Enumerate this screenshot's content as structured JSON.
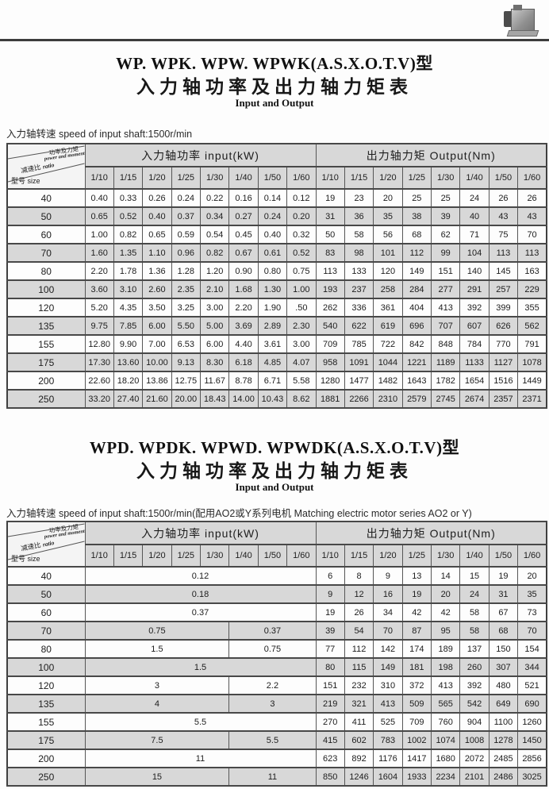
{
  "page": {
    "photo_icon": "gearbox-photo"
  },
  "sections": [
    {
      "title": "WP. WPK. WPW. WPWK(A.S.X.O.T.V)型",
      "subtitle_cn": "入力轴功率及出力轴力矩表",
      "subtitle_en": "Input and Output",
      "note": "入力轴转速 speed of input shaft:1500r/min",
      "table": {
        "corner": {
          "top_cn": "功率及力矩",
          "top_en": "power and moment",
          "mid_cn": "减速比",
          "mid_en": "ratio",
          "bottom_cn": "型号",
          "bottom_en": "size"
        },
        "input_label": "入力轴功率  input(kW)",
        "output_label": "出力轴力矩  Output(Nm)",
        "ratios": [
          "1/10",
          "1/15",
          "1/20",
          "1/25",
          "1/30",
          "1/40",
          "1/50",
          "1/60"
        ],
        "rows": [
          {
            "size": "40",
            "input": [
              "0.40",
              "0.33",
              "0.26",
              "0.24",
              "0.22",
              "0.16",
              "0.14",
              "0.12"
            ],
            "output": [
              "19",
              "23",
              "20",
              "25",
              "25",
              "24",
              "26",
              "26"
            ]
          },
          {
            "size": "50",
            "input": [
              "0.65",
              "0.52",
              "0.40",
              "0.37",
              "0.34",
              "0.27",
              "0.24",
              "0.20"
            ],
            "output": [
              "31",
              "36",
              "35",
              "38",
              "39",
              "40",
              "43",
              "43"
            ]
          },
          {
            "size": "60",
            "input": [
              "1.00",
              "0.82",
              "0.65",
              "0.59",
              "0.54",
              "0.45",
              "0.40",
              "0.32"
            ],
            "output": [
              "50",
              "58",
              "56",
              "68",
              "62",
              "71",
              "75",
              "70"
            ]
          },
          {
            "size": "70",
            "input": [
              "1.60",
              "1.35",
              "1.10",
              "0.96",
              "0.82",
              "0.67",
              "0.61",
              "0.52"
            ],
            "output": [
              "83",
              "98",
              "101",
              "112",
              "99",
              "104",
              "113",
              "113"
            ]
          },
          {
            "size": "80",
            "input": [
              "2.20",
              "1.78",
              "1.36",
              "1.28",
              "1.20",
              "0.90",
              "0.80",
              "0.75"
            ],
            "output": [
              "113",
              "133",
              "120",
              "149",
              "151",
              "140",
              "145",
              "163"
            ]
          },
          {
            "size": "100",
            "input": [
              "3.60",
              "3.10",
              "2.60",
              "2.35",
              "2.10",
              "1.68",
              "1.30",
              "1.00"
            ],
            "output": [
              "193",
              "237",
              "258",
              "284",
              "277",
              "291",
              "257",
              "229"
            ]
          },
          {
            "size": "120",
            "input": [
              "5.20",
              "4.35",
              "3.50",
              "3.25",
              "3.00",
              "2.20",
              "1.90",
              ".50"
            ],
            "output": [
              "262",
              "336",
              "361",
              "404",
              "413",
              "392",
              "399",
              "355"
            ]
          },
          {
            "size": "135",
            "input": [
              "9.75",
              "7.85",
              "6.00",
              "5.50",
              "5.00",
              "3.69",
              "2.89",
              "2.30"
            ],
            "output": [
              "540",
              "622",
              "619",
              "696",
              "707",
              "607",
              "626",
              "562"
            ]
          },
          {
            "size": "155",
            "input": [
              "12.80",
              "9.90",
              "7.00",
              "6.53",
              "6.00",
              "4.40",
              "3.61",
              "3.00"
            ],
            "output": [
              "709",
              "785",
              "722",
              "842",
              "848",
              "784",
              "770",
              "791"
            ]
          },
          {
            "size": "175",
            "input": [
              "17.30",
              "13.60",
              "10.00",
              "9.13",
              "8.30",
              "6.18",
              "4.85",
              "4.07"
            ],
            "output": [
              "958",
              "1091",
              "1044",
              "1221",
              "1189",
              "1133",
              "1127",
              "1078"
            ]
          },
          {
            "size": "200",
            "input": [
              "22.60",
              "18.20",
              "13.86",
              "12.75",
              "11.67",
              "8.78",
              "6.71",
              "5.58"
            ],
            "output": [
              "1280",
              "1477",
              "1482",
              "1643",
              "1782",
              "1654",
              "1516",
              "1449"
            ]
          },
          {
            "size": "250",
            "input": [
              "33.20",
              "27.40",
              "21.60",
              "20.00",
              "18.43",
              "14.00",
              "10.43",
              "8.62"
            ],
            "output": [
              "1881",
              "2266",
              "2310",
              "2579",
              "2745",
              "2674",
              "2357",
              "2371"
            ]
          }
        ]
      }
    },
    {
      "title": "WPD. WPDK. WPWD. WPWDK(A.S.X.O.T.V)型",
      "subtitle_cn": "入力轴功率及出力轴力矩表",
      "subtitle_en": "Input and Output",
      "note": "入力轴转速 speed of input shaft:1500r/min(配用AO2或Y系列电机 Matching electric motor series AO2 or Y)",
      "table": {
        "corner": {
          "top_cn": "功率及力矩",
          "top_en": "power and moment",
          "mid_cn": "减速比",
          "mid_en": "ratio",
          "bottom_cn": "型号",
          "bottom_en": "size"
        },
        "input_label": "入力轴功率  input(kW)",
        "output_label": "出力轴力矩  Output(Nm)",
        "ratios": [
          "1/10",
          "1/15",
          "1/20",
          "1/25",
          "1/30",
          "1/40",
          "1/50",
          "1/60"
        ],
        "rows": [
          {
            "size": "40",
            "input_spans": [
              {
                "text": "0.12",
                "span": 8
              }
            ],
            "output": [
              "6",
              "8",
              "9",
              "13",
              "14",
              "15",
              "19",
              "20"
            ]
          },
          {
            "size": "50",
            "input_spans": [
              {
                "text": "0.18",
                "span": 8
              }
            ],
            "output": [
              "9",
              "12",
              "16",
              "19",
              "20",
              "24",
              "31",
              "35"
            ]
          },
          {
            "size": "60",
            "input_spans": [
              {
                "text": "0.37",
                "span": 8
              }
            ],
            "output": [
              "19",
              "26",
              "34",
              "42",
              "42",
              "58",
              "67",
              "73"
            ]
          },
          {
            "size": "70",
            "input_spans": [
              {
                "text": "0.75",
                "span": 5
              },
              {
                "text": "0.37",
                "span": 3
              }
            ],
            "output": [
              "39",
              "54",
              "70",
              "87",
              "95",
              "58",
              "68",
              "70"
            ]
          },
          {
            "size": "80",
            "input_spans": [
              {
                "text": "1.5",
                "span": 5
              },
              {
                "text": "0.75",
                "span": 3
              }
            ],
            "output": [
              "77",
              "112",
              "142",
              "174",
              "189",
              "137",
              "150",
              "154"
            ]
          },
          {
            "size": "100",
            "input_spans": [
              {
                "text": "1.5",
                "span": 8
              }
            ],
            "output": [
              "80",
              "115",
              "149",
              "181",
              "198",
              "260",
              "307",
              "344"
            ]
          },
          {
            "size": "120",
            "input_spans": [
              {
                "text": "3",
                "span": 5
              },
              {
                "text": "2.2",
                "span": 3
              }
            ],
            "output": [
              "151",
              "232",
              "310",
              "372",
              "413",
              "392",
              "480",
              "521"
            ]
          },
          {
            "size": "135",
            "input_spans": [
              {
                "text": "4",
                "span": 5
              },
              {
                "text": "3",
                "span": 3
              }
            ],
            "output": [
              "219",
              "321",
              "413",
              "509",
              "565",
              "542",
              "649",
              "690"
            ]
          },
          {
            "size": "155",
            "input_spans": [
              {
                "text": "5.5",
                "span": 8
              }
            ],
            "output": [
              "270",
              "411",
              "525",
              "709",
              "760",
              "904",
              "1100",
              "1260"
            ]
          },
          {
            "size": "175",
            "input_spans": [
              {
                "text": "7.5",
                "span": 5
              },
              {
                "text": "5.5",
                "span": 3
              }
            ],
            "output": [
              "415",
              "602",
              "783",
              "1002",
              "1074",
              "1008",
              "1278",
              "1450"
            ]
          },
          {
            "size": "200",
            "input_spans": [
              {
                "text": "11",
                "span": 8
              }
            ],
            "output": [
              "623",
              "892",
              "1176",
              "1417",
              "1680",
              "2072",
              "2485",
              "2856"
            ]
          },
          {
            "size": "250",
            "input_spans": [
              {
                "text": "15",
                "span": 5
              },
              {
                "text": "11",
                "span": 3
              }
            ],
            "output": [
              "850",
              "1246",
              "1604",
              "1933",
              "2234",
              "2101",
              "2486",
              "3025"
            ]
          }
        ]
      }
    }
  ]
}
